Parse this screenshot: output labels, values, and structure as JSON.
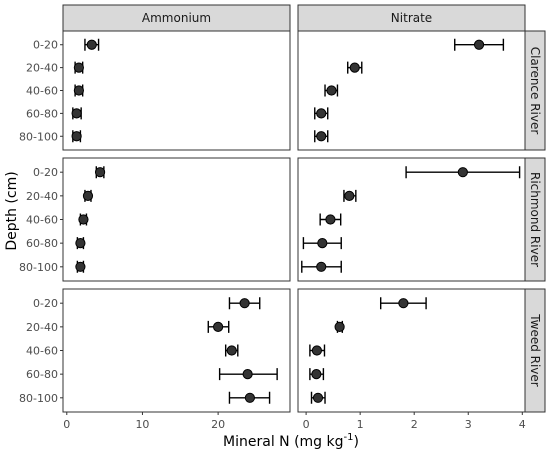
{
  "chart_data": {
    "type": "scatter",
    "title": "",
    "xlabel": "Mineral N (mg kg",
    "xlabel_superscript": "-1",
    "xlabel_suffix": ")",
    "ylabel": "Depth (cm)",
    "depths": [
      "0-20",
      "20-40",
      "40-60",
      "60-80",
      "80-100"
    ],
    "columns": [
      {
        "name": "Ammonium",
        "xlim": [
          -0.5,
          29.5
        ],
        "ticks": [
          0,
          10,
          20
        ]
      },
      {
        "name": "Nitrate",
        "xlim": [
          -0.15,
          4.05
        ],
        "ticks": [
          0,
          1,
          2,
          3,
          4
        ]
      }
    ],
    "rows": [
      "Clarence River",
      "Richmond River",
      "Tweed River"
    ],
    "panels": [
      {
        "row": "Clarence River",
        "column": "Ammonium",
        "points": [
          {
            "depth": "0-20",
            "mean": 3.3,
            "lo": 2.4,
            "hi": 4.2
          },
          {
            "depth": "20-40",
            "mean": 1.6,
            "lo": 1.1,
            "hi": 2.1
          },
          {
            "depth": "40-60",
            "mean": 1.6,
            "lo": 1.1,
            "hi": 2.1
          },
          {
            "depth": "60-80",
            "mean": 1.3,
            "lo": 0.8,
            "hi": 1.9
          },
          {
            "depth": "80-100",
            "mean": 1.3,
            "lo": 0.8,
            "hi": 1.8
          }
        ]
      },
      {
        "row": "Clarence River",
        "column": "Nitrate",
        "points": [
          {
            "depth": "0-20",
            "mean": 3.2,
            "lo": 2.75,
            "hi": 3.65
          },
          {
            "depth": "20-40",
            "mean": 0.9,
            "lo": 0.77,
            "hi": 1.03
          },
          {
            "depth": "40-60",
            "mean": 0.47,
            "lo": 0.35,
            "hi": 0.58
          },
          {
            "depth": "60-80",
            "mean": 0.28,
            "lo": 0.16,
            "hi": 0.4
          },
          {
            "depth": "80-100",
            "mean": 0.28,
            "lo": 0.16,
            "hi": 0.4
          }
        ]
      },
      {
        "row": "Richmond River",
        "column": "Ammonium",
        "points": [
          {
            "depth": "0-20",
            "mean": 4.4,
            "lo": 3.9,
            "hi": 4.9
          },
          {
            "depth": "20-40",
            "mean": 2.8,
            "lo": 2.4,
            "hi": 3.2
          },
          {
            "depth": "40-60",
            "mean": 2.2,
            "lo": 1.8,
            "hi": 2.6
          },
          {
            "depth": "60-80",
            "mean": 1.8,
            "lo": 1.4,
            "hi": 2.2
          },
          {
            "depth": "80-100",
            "mean": 1.8,
            "lo": 1.4,
            "hi": 2.2
          }
        ]
      },
      {
        "row": "Richmond River",
        "column": "Nitrate",
        "points": [
          {
            "depth": "0-20",
            "mean": 2.9,
            "lo": 1.85,
            "hi": 3.95
          },
          {
            "depth": "20-40",
            "mean": 0.8,
            "lo": 0.7,
            "hi": 0.92
          },
          {
            "depth": "40-60",
            "mean": 0.45,
            "lo": 0.26,
            "hi": 0.64
          },
          {
            "depth": "60-80",
            "mean": 0.3,
            "lo": -0.05,
            "hi": 0.65
          },
          {
            "depth": "80-100",
            "mean": 0.28,
            "lo": -0.08,
            "hi": 0.65
          }
        ]
      },
      {
        "row": "Tweed River",
        "column": "Ammonium",
        "points": [
          {
            "depth": "0-20",
            "mean": 23.5,
            "lo": 21.5,
            "hi": 25.5
          },
          {
            "depth": "20-40",
            "mean": 20.0,
            "lo": 18.7,
            "hi": 21.4
          },
          {
            "depth": "40-60",
            "mean": 21.8,
            "lo": 21.0,
            "hi": 22.6
          },
          {
            "depth": "60-80",
            "mean": 23.9,
            "lo": 20.2,
            "hi": 27.8
          },
          {
            "depth": "80-100",
            "mean": 24.2,
            "lo": 21.5,
            "hi": 26.8
          }
        ]
      },
      {
        "row": "Tweed River",
        "column": "Nitrate",
        "points": [
          {
            "depth": "0-20",
            "mean": 1.8,
            "lo": 1.38,
            "hi": 2.22
          },
          {
            "depth": "20-40",
            "mean": 0.62,
            "lo": 0.58,
            "hi": 0.67
          },
          {
            "depth": "40-60",
            "mean": 0.2,
            "lo": 0.07,
            "hi": 0.34
          },
          {
            "depth": "60-80",
            "mean": 0.19,
            "lo": 0.07,
            "hi": 0.32
          },
          {
            "depth": "80-100",
            "mean": 0.22,
            "lo": 0.1,
            "hi": 0.35
          }
        ]
      }
    ],
    "grid": false,
    "point_color": "#333333"
  }
}
